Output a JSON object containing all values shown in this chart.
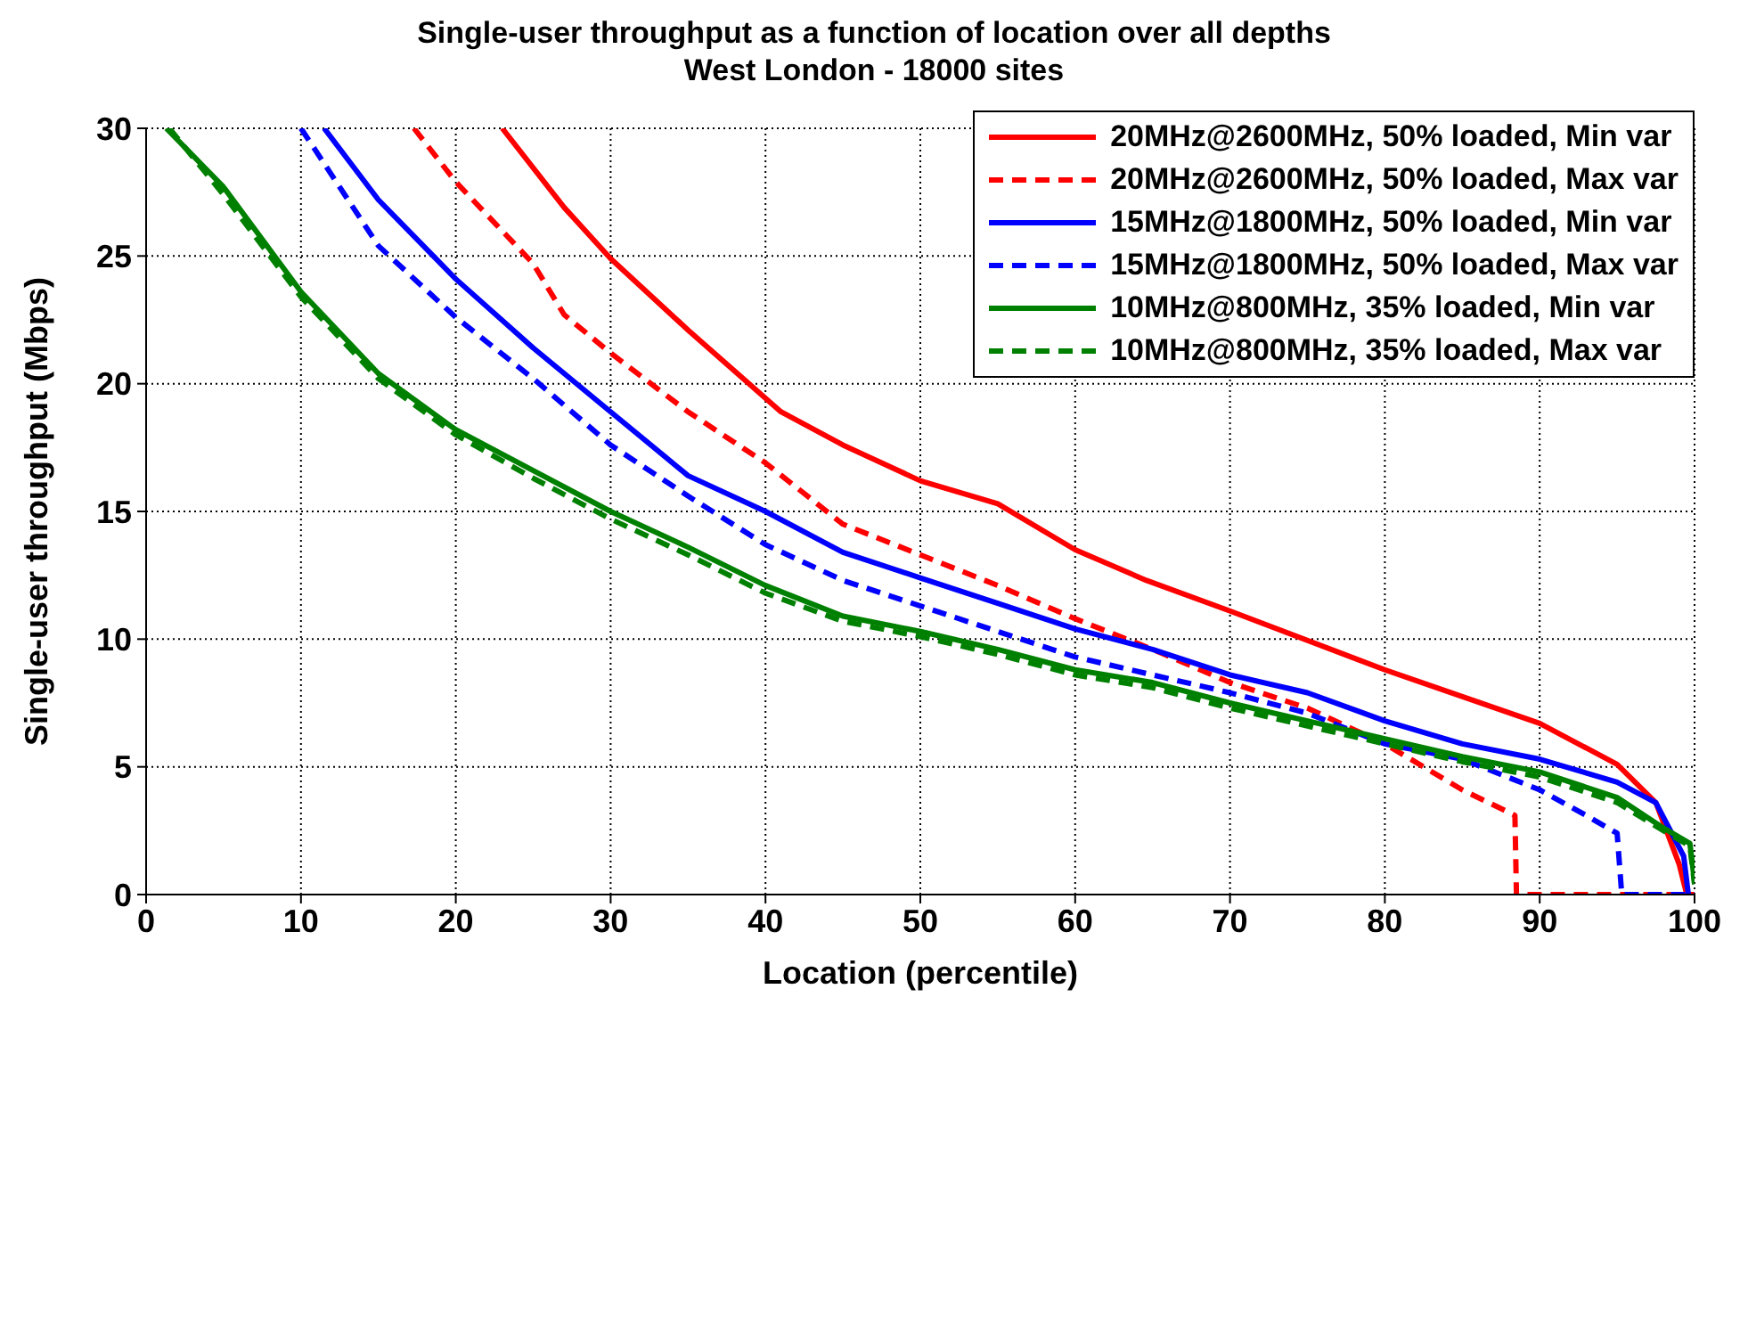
{
  "chart_data": {
    "type": "line",
    "title": "Single-user throughput as a function of location over all depths",
    "subtitle": "West London - 18000 sites",
    "xlabel": "Location (percentile)",
    "ylabel": "Single-user throughput (Mbps)",
    "xlim": [
      0,
      100
    ],
    "xticks": [
      0,
      10,
      20,
      30,
      40,
      50,
      60,
      70,
      80,
      90,
      100
    ],
    "ylim": [
      0,
      30
    ],
    "yticks": [
      0,
      5,
      10,
      15,
      20,
      25,
      30
    ],
    "grid": true,
    "legend": "top right",
    "series": [
      {
        "name": "20MHz@2600MHz, 50% loaded, Min var",
        "color": "#ff0000",
        "line_style": "solid",
        "x": [
          23.0,
          27,
          30,
          35,
          41,
          45,
          50,
          55,
          60,
          64.6,
          70,
          80,
          90,
          95,
          97.5,
          99,
          99.5
        ],
        "values": [
          30,
          26.9,
          24.9,
          22.1,
          18.9,
          17.6,
          16.2,
          15.3,
          13.5,
          12.3,
          11.1,
          8.8,
          6.7,
          5.1,
          3.6,
          1.2,
          0
        ]
      },
      {
        "name": "20MHz@2600MHz, 50% loaded, Max var",
        "color": "#ff0000",
        "line_style": "dashed",
        "x": [
          17.3,
          20,
          25,
          27,
          30,
          35,
          40,
          45,
          50,
          55,
          60,
          65,
          70,
          75,
          80,
          85,
          88.4,
          88.5,
          100
        ],
        "values": [
          30,
          27.9,
          24.7,
          22.7,
          21.2,
          18.9,
          16.9,
          14.5,
          13.3,
          12.1,
          10.8,
          9.6,
          8.3,
          7.3,
          5.9,
          4.1,
          3.1,
          0,
          0
        ]
      },
      {
        "name": "15MHz@1800MHz, 50% loaded, Min var",
        "color": "#0000ff",
        "line_style": "solid",
        "x": [
          11.5,
          15,
          20,
          25,
          30,
          35,
          40,
          45,
          50,
          55,
          60,
          65,
          70,
          75,
          80,
          85,
          90,
          95,
          97.5,
          99.3,
          99.6
        ],
        "values": [
          30,
          27.2,
          24.1,
          21.4,
          18.9,
          16.4,
          15.0,
          13.4,
          12.4,
          11.4,
          10.4,
          9.6,
          8.6,
          7.9,
          6.8,
          5.9,
          5.3,
          4.4,
          3.6,
          1.5,
          0
        ]
      },
      {
        "name": "15MHz@1800MHz, 50% loaded, Max var",
        "color": "#0000ff",
        "line_style": "dashed",
        "x": [
          10,
          15,
          20,
          25,
          30,
          35,
          40,
          45,
          50,
          55,
          60,
          65,
          70,
          75,
          80,
          85,
          90,
          93,
          95,
          95.3,
          100
        ],
        "values": [
          30,
          25.4,
          22.6,
          20.2,
          17.6,
          15.6,
          13.7,
          12.3,
          11.3,
          10.3,
          9.3,
          8.6,
          7.9,
          7.1,
          5.9,
          5.3,
          4.1,
          3.1,
          2.4,
          0,
          0
        ]
      },
      {
        "name": "10MHz@800MHz, 35% loaded, Min var",
        "color": "#008000",
        "line_style": "solid",
        "x": [
          1.3,
          5,
          10,
          15,
          20,
          25,
          30,
          35,
          40,
          45,
          50,
          55,
          60,
          65,
          70,
          75,
          80,
          85,
          90,
          95,
          98,
          99.7,
          100
        ],
        "values": [
          30,
          27.7,
          23.6,
          20.4,
          18.2,
          16.6,
          15.0,
          13.6,
          12.1,
          10.9,
          10.3,
          9.6,
          8.8,
          8.3,
          7.5,
          6.8,
          6.1,
          5.4,
          4.8,
          3.8,
          2.6,
          2.0,
          0.5
        ]
      },
      {
        "name": "10MHz@800MHz, 35% loaded, Max var",
        "color": "#008000",
        "line_style": "dashed",
        "x": [
          1.5,
          5,
          10,
          15,
          20,
          25,
          30,
          35,
          40,
          45,
          50,
          55,
          60,
          65,
          70,
          75,
          80,
          85,
          90,
          95,
          98,
          99.7,
          100
        ],
        "values": [
          30,
          27.4,
          23.4,
          20.2,
          18.0,
          16.3,
          14.7,
          13.3,
          11.8,
          10.7,
          10.1,
          9.4,
          8.6,
          8.1,
          7.3,
          6.6,
          5.9,
          5.2,
          4.6,
          3.6,
          2.5,
          1.9,
          0.4
        ]
      }
    ]
  }
}
